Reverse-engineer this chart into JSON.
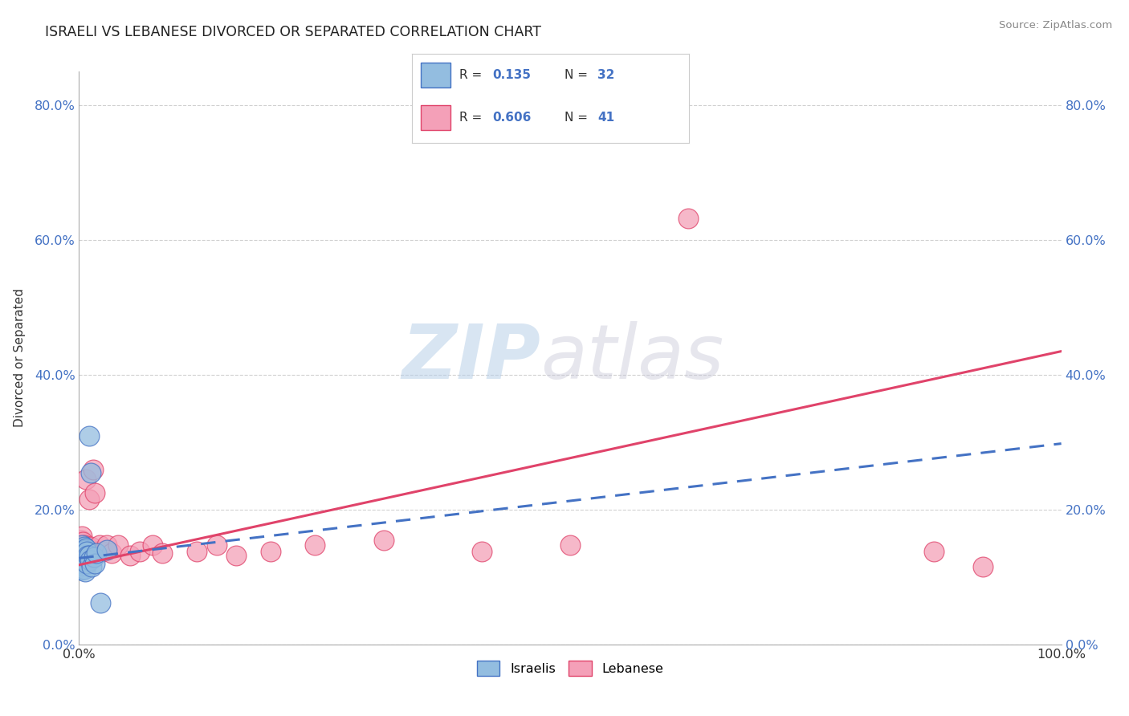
{
  "title": "ISRAELI VS LEBANESE DIVORCED OR SEPARATED CORRELATION CHART",
  "source": "Source: ZipAtlas.com",
  "ylabel": "Divorced or Separated",
  "xlim": [
    0,
    1
  ],
  "ylim": [
    0,
    0.85
  ],
  "yticks": [
    0.0,
    0.2,
    0.4,
    0.6,
    0.8
  ],
  "ytick_labels": [
    "0.0%",
    "20.0%",
    "40.0%",
    "60.0%",
    "80.0%"
  ],
  "israeli_color": "#93bde0",
  "lebanese_color": "#f4a0b8",
  "israeli_line_color": "#4472c4",
  "lebanese_line_color": "#e0436a",
  "watermark_zip": "ZIP",
  "watermark_atlas": "atlas",
  "background_color": "#ffffff",
  "israeli_trend": [
    0.128,
    0.298
  ],
  "lebanese_trend": [
    0.118,
    0.435
  ],
  "israelis_x": [
    0.001,
    0.001,
    0.001,
    0.002,
    0.002,
    0.002,
    0.003,
    0.003,
    0.003,
    0.004,
    0.004,
    0.005,
    0.005,
    0.005,
    0.006,
    0.006,
    0.006,
    0.007,
    0.007,
    0.008,
    0.008,
    0.009,
    0.01,
    0.01,
    0.011,
    0.012,
    0.013,
    0.015,
    0.016,
    0.018,
    0.022,
    0.028
  ],
  "israelis_y": [
    0.135,
    0.125,
    0.115,
    0.142,
    0.128,
    0.11,
    0.148,
    0.133,
    0.118,
    0.138,
    0.12,
    0.145,
    0.13,
    0.112,
    0.14,
    0.125,
    0.108,
    0.143,
    0.128,
    0.138,
    0.12,
    0.132,
    0.31,
    0.132,
    0.125,
    0.255,
    0.115,
    0.13,
    0.12,
    0.135,
    0.062,
    0.14
  ],
  "lebanese_x": [
    0.001,
    0.001,
    0.002,
    0.002,
    0.003,
    0.003,
    0.003,
    0.004,
    0.004,
    0.005,
    0.006,
    0.006,
    0.007,
    0.008,
    0.009,
    0.01,
    0.011,
    0.012,
    0.014,
    0.016,
    0.019,
    0.021,
    0.024,
    0.028,
    0.033,
    0.04,
    0.052,
    0.062,
    0.075,
    0.085,
    0.12,
    0.14,
    0.16,
    0.195,
    0.24,
    0.31,
    0.41,
    0.5,
    0.62,
    0.87,
    0.92
  ],
  "lebanese_y": [
    0.148,
    0.132,
    0.155,
    0.138,
    0.16,
    0.145,
    0.128,
    0.152,
    0.135,
    0.148,
    0.138,
    0.122,
    0.245,
    0.132,
    0.145,
    0.215,
    0.138,
    0.145,
    0.26,
    0.225,
    0.138,
    0.148,
    0.138,
    0.148,
    0.135,
    0.148,
    0.132,
    0.138,
    0.148,
    0.135,
    0.138,
    0.148,
    0.132,
    0.138,
    0.148,
    0.155,
    0.138,
    0.148,
    0.632,
    0.138,
    0.115
  ]
}
